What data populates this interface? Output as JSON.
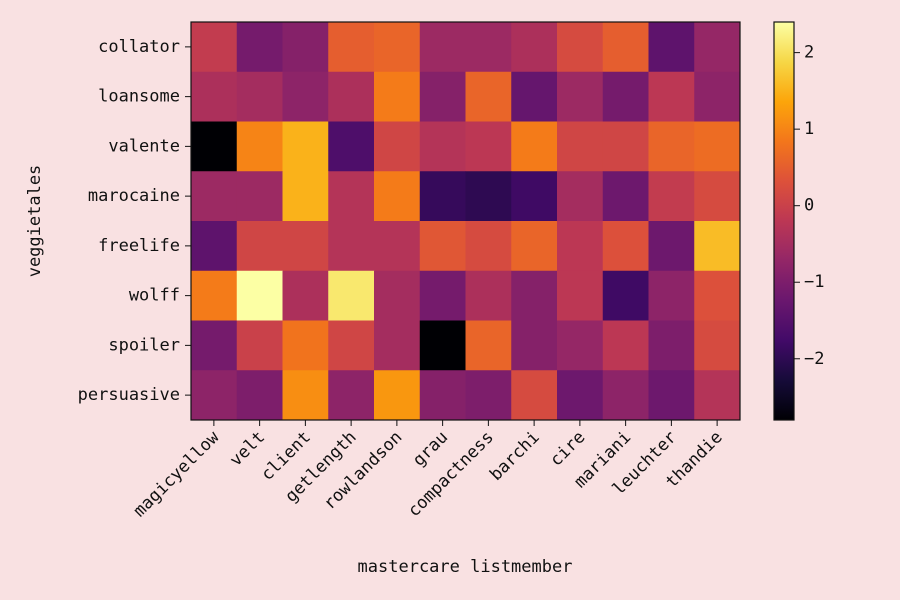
{
  "colors": {
    "background": "#f9e1e2",
    "colormap": "inferno"
  },
  "chart_data": {
    "type": "heatmap",
    "title": "",
    "xlabel": "mastercare listmember",
    "ylabel": "veggietales",
    "x_categories": [
      "magicyellow",
      "velt",
      "client",
      "getlength",
      "rowlandson",
      "grau",
      "compactness",
      "barchi",
      "cire",
      "mariani",
      "leuchter",
      "thandie"
    ],
    "y_categories": [
      "collator",
      "loansome",
      "valente",
      "marocaine",
      "freelife",
      "wolff",
      "spoiler",
      "persuasive"
    ],
    "values": [
      [
        -0.1,
        -1.1,
        -0.9,
        0.5,
        0.6,
        -0.6,
        -0.6,
        -0.4,
        0.2,
        0.5,
        -1.4,
        -0.7
      ],
      [
        -0.4,
        -0.5,
        -0.8,
        -0.4,
        0.9,
        -0.9,
        0.6,
        -1.3,
        -0.6,
        -1.1,
        -0.2,
        -0.8
      ],
      [
        -2.8,
        1.0,
        1.5,
        -1.6,
        0.1,
        -0.3,
        -0.2,
        0.9,
        0.1,
        0.1,
        0.6,
        0.7
      ],
      [
        -0.6,
        -0.6,
        1.5,
        -0.3,
        0.9,
        -1.9,
        -2.0,
        -1.8,
        -0.5,
        -1.2,
        -0.1,
        0.2
      ],
      [
        -1.4,
        0.1,
        0.1,
        -0.3,
        -0.3,
        0.4,
        0.2,
        0.6,
        -0.2,
        0.3,
        -1.2,
        1.6
      ],
      [
        0.9,
        2.4,
        -0.4,
        2.1,
        -0.5,
        -1.1,
        -0.4,
        -0.9,
        -0.2,
        -1.8,
        -0.8,
        0.3
      ],
      [
        -1.1,
        0.0,
        0.8,
        0.1,
        -0.5,
        -2.8,
        0.6,
        -0.9,
        -0.7,
        -0.2,
        -1.0,
        0.2
      ],
      [
        -0.8,
        -1.0,
        1.1,
        -0.8,
        1.2,
        -0.9,
        -1.0,
        0.2,
        -1.2,
        -0.8,
        -1.2,
        -0.3
      ]
    ],
    "colorbar": {
      "range": [
        -2.8,
        2.4
      ],
      "ticks": [
        -2,
        -1,
        0,
        1,
        2
      ],
      "tick_labels": [
        "−2",
        "−1",
        "0",
        "1",
        "2"
      ]
    }
  }
}
